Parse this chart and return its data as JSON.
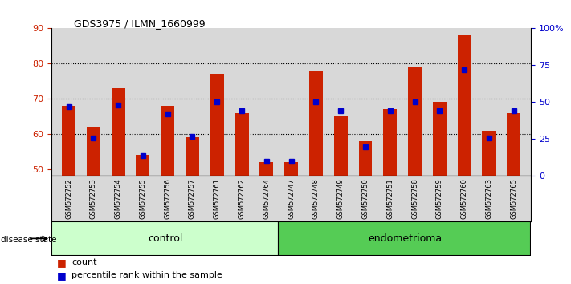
{
  "title": "GDS3975 / ILMN_1660999",
  "samples": [
    "GSM572752",
    "GSM572753",
    "GSM572754",
    "GSM572755",
    "GSM572756",
    "GSM572757",
    "GSM572761",
    "GSM572762",
    "GSM572764",
    "GSM572747",
    "GSM572748",
    "GSM572749",
    "GSM572750",
    "GSM572751",
    "GSM572758",
    "GSM572759",
    "GSM572760",
    "GSM572763",
    "GSM572765"
  ],
  "red_values": [
    68,
    62,
    73,
    54,
    68,
    59,
    77,
    66,
    52,
    52,
    78,
    65,
    58,
    67,
    79,
    69,
    88,
    61,
    66
  ],
  "blue_values": [
    47,
    26,
    48,
    14,
    42,
    27,
    50,
    44,
    10,
    10,
    50,
    44,
    20,
    44,
    50,
    44,
    72,
    26,
    44
  ],
  "ylim_left": [
    48,
    90
  ],
  "ylim_right": [
    0,
    100
  ],
  "yticks_left": [
    50,
    60,
    70,
    80,
    90
  ],
  "yticks_right": [
    0,
    25,
    50,
    75,
    100
  ],
  "ytick_labels_right": [
    "0",
    "25",
    "50",
    "75",
    "100%"
  ],
  "control_count": 9,
  "endometrioma_count": 10,
  "bar_color": "#CC2200",
  "square_color": "#0000CC",
  "control_fill": "#CCFFCC",
  "endo_fill": "#55CC55",
  "bg_color": "#D8D8D8",
  "bar_width": 0.55,
  "base_value": 48
}
